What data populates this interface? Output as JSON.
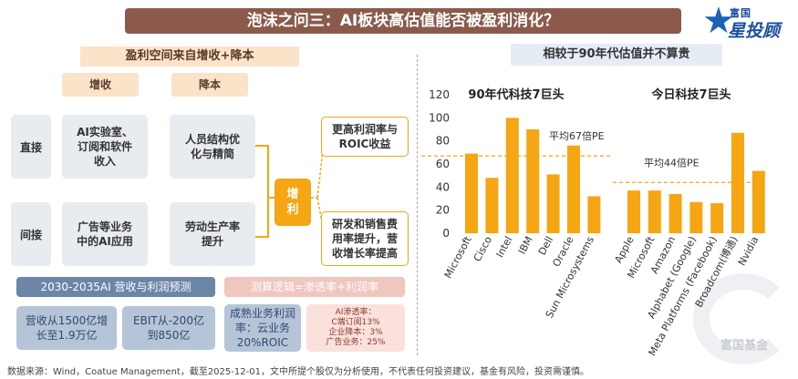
{
  "page": {
    "title": "泡沫之问三：AI板块高估值能否被盈利消化？",
    "logo": {
      "top": "富国",
      "main": "星投顾",
      "icon": "star-icon"
    },
    "watermark": "富国基金",
    "source": "数据来源：Wind，Coatue Management，截至2025-12-01，文中所提个股仅为分析使用，不代表任何投资建议，基金有风险，投资需谨慎。"
  },
  "left": {
    "section_title": "盈利空间来自增收+降本",
    "col_headers": [
      "增收",
      "降本"
    ],
    "row_labels": [
      "直接",
      "间接"
    ],
    "cells": {
      "direct_revenue": "AI实验室、\n订阅和软件\n收入",
      "direct_cost": "人员结构优\n化与精简",
      "indirect_revenue": "广告等业务\n中的AI应用",
      "indirect_cost": "劳动生产率\n提升"
    },
    "center": "增利",
    "outcomes": [
      "更高利润率与\nROIC收益",
      "研发和销售费\n用率提升，营\n收增长率提高"
    ],
    "forecast_title": "2030-2035AI 营收与利润预测",
    "forecast_boxes": [
      "营收从1500亿增\n长至1.9万亿",
      "EBIT从-200亿\n到850亿",
      "成熟业务利润\n率：云业务\n20%ROIC"
    ],
    "logic_title": "测算逻辑=渗透率+利润率",
    "logic_box": "AI渗透率：\nC端订阅13%\n企业降本：3%\n广告业务：25%"
  },
  "chart_data": [
    {
      "type": "bar",
      "title": "90年代科技7巨头",
      "categories": [
        "Microsoft",
        "Cisco",
        "Intel",
        "IBM",
        "Dell",
        "Oracle",
        "Sun Microsystems"
      ],
      "values": [
        69,
        48,
        100,
        90,
        51,
        76,
        32
      ],
      "average": 67,
      "average_label": "平均67倍PE",
      "ylim": [
        0,
        120
      ],
      "yticks": [
        0,
        20,
        40,
        60,
        80,
        100,
        120
      ],
      "color": "#f5a612"
    },
    {
      "type": "bar",
      "title": "今日科技7巨头",
      "categories": [
        "Apple",
        "Microsoft",
        "Amazon",
        "Alphabet (Google)",
        "Meta Platforms (Facebook)",
        "Broadcom(博通)",
        "Nvidia"
      ],
      "values": [
        37,
        37,
        34,
        27,
        26,
        87,
        54
      ],
      "average": 44,
      "average_label": "平均44倍PE",
      "ylim": [
        0,
        120
      ],
      "color": "#f5a612"
    }
  ],
  "chart_header": "相较于90年代估值并不算贵"
}
